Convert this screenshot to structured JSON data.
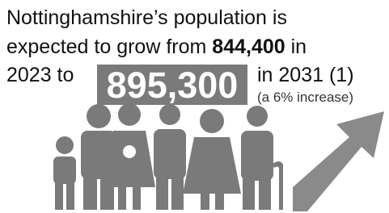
{
  "headline": {
    "line1": "Nottinghamshire’s population is",
    "line2_start": "expected to grow from",
    "population_2023": "844,400",
    "line2_end": "in",
    "line3_start": "2023 to",
    "population_2031": "895,300",
    "line3_end": "in 2031 (1)",
    "increase_note": "(a 6% increase)"
  }
}
